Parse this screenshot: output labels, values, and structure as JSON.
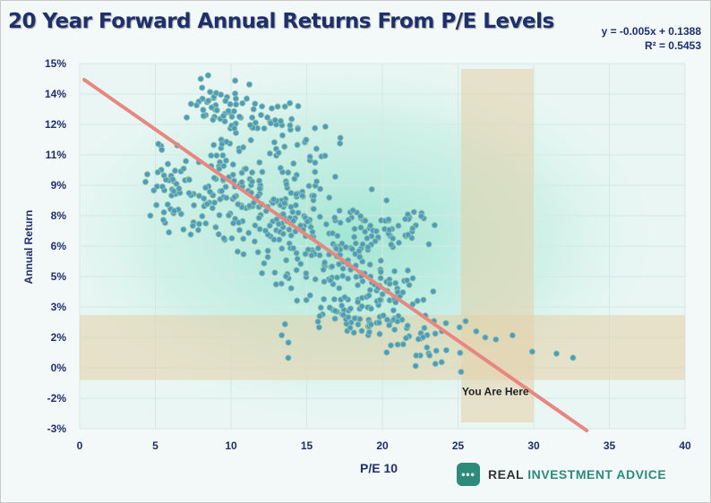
{
  "chart_data": {
    "type": "scatter",
    "title": "20 Year Forward Annual Returns From P/E Levels",
    "xlabel": "P/E 10",
    "ylabel": "Annual Return",
    "xlim": [
      0,
      40
    ],
    "ylim": [
      -3,
      15
    ],
    "x_ticks": [
      "0",
      "5",
      "10",
      "15",
      "20",
      "25",
      "30",
      "35",
      "40"
    ],
    "y_ticks": [
      "-3%",
      "-2%",
      "0%",
      "2%",
      "3%",
      "5%",
      "6%",
      "8%",
      "9%",
      "11%",
      "12%",
      "14%",
      "15%"
    ],
    "grid": true,
    "equation": "y = -0.005x + 0.1388",
    "r_squared": "R² = 0.5453",
    "trendline": {
      "color": "#e8877f",
      "points": [
        [
          0.3,
          14.2
        ],
        [
          33.5,
          -3.2
        ]
      ]
    },
    "marker_color": "#4e9ac0",
    "highlight_bands": [
      {
        "axis": "x",
        "from": 25.2,
        "to": 30.0,
        "color": "#e3cfa8"
      },
      {
        "axis": "y",
        "from": -0.6,
        "to": 2.6,
        "color": "#e3cfa8"
      }
    ],
    "annotation": {
      "text": "You Are Here",
      "x": 25.2,
      "y": -0.9
    },
    "clusters": [
      {
        "cx": 9,
        "cy": 12.8,
        "sx": 0.9,
        "sy": 0.8,
        "n": 45
      },
      {
        "cx": 12.3,
        "cy": 11.8,
        "sx": 1.4,
        "sy": 0.7,
        "n": 45
      },
      {
        "cx": 15,
        "cy": 10.2,
        "sx": 1.3,
        "sy": 0.8,
        "n": 30
      },
      {
        "cx": 6,
        "cy": 8.6,
        "sx": 0.8,
        "sy": 1.1,
        "n": 45
      },
      {
        "cx": 9.5,
        "cy": 8.4,
        "sx": 1.5,
        "sy": 1.2,
        "n": 90
      },
      {
        "cx": 13.2,
        "cy": 7.6,
        "sx": 1.6,
        "sy": 1.3,
        "n": 100
      },
      {
        "cx": 16.5,
        "cy": 5.4,
        "sx": 1.5,
        "sy": 1.2,
        "n": 95
      },
      {
        "cx": 18.3,
        "cy": 7.2,
        "sx": 1.1,
        "sy": 0.8,
        "n": 30
      },
      {
        "cx": 21.3,
        "cy": 7.0,
        "sx": 1.0,
        "sy": 0.6,
        "n": 30
      },
      {
        "cx": 20.2,
        "cy": 3.5,
        "sx": 1.4,
        "sy": 0.7,
        "n": 60
      },
      {
        "cx": 18.2,
        "cy": 2.5,
        "sx": 1.3,
        "sy": 0.5,
        "n": 40
      },
      {
        "cx": 22.3,
        "cy": 1.4,
        "sx": 1.1,
        "sy": 0.7,
        "n": 35
      },
      {
        "cx": 13.6,
        "cy": 1.2,
        "sx": 0.15,
        "sy": 0.8,
        "n": 4
      }
    ],
    "outliers": [
      [
        25.5,
        2.3
      ],
      [
        26.2,
        1.8
      ],
      [
        26.8,
        1.5
      ],
      [
        27.5,
        1.4
      ],
      [
        28.6,
        1.6
      ],
      [
        29.9,
        0.8
      ],
      [
        31.5,
        0.7
      ],
      [
        32.6,
        0.5
      ],
      [
        25.2,
        -0.2
      ],
      [
        23.5,
        0.2
      ],
      [
        25.1,
        2.0
      ],
      [
        24.2,
        2.2
      ]
    ]
  },
  "branding": {
    "logo_badge": "•••",
    "logo_part1": "REAL ",
    "logo_part2": "INVESTMENT ADVICE"
  }
}
